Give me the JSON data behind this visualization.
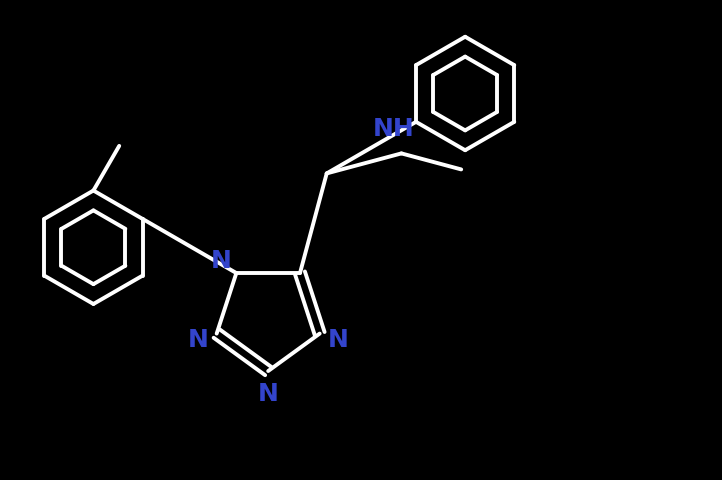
{
  "bg_color": "#000000",
  "bond_color": "#ffffff",
  "atom_color": "#3344cc",
  "lw": 2.8,
  "figsize": [
    7.22,
    4.81
  ],
  "dpi": 100,
  "font_size": 18,
  "font_weight": "bold",
  "xlim": [
    -5.5,
    8.5
  ],
  "ylim": [
    -4.5,
    4.5
  ]
}
